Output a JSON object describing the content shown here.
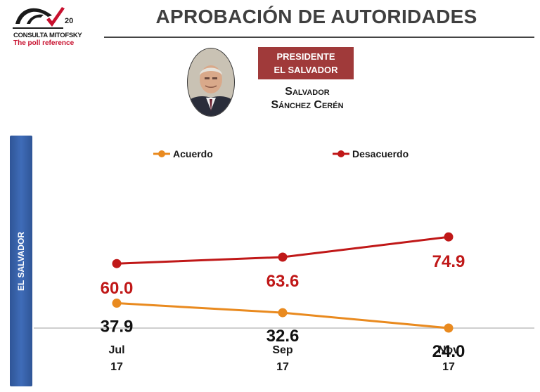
{
  "header": {
    "title": "APROBACIÓN DE AUTORIDADES",
    "logo_brand": "CONSULTA MITOFSKY",
    "logo_tagline": "The poll reference",
    "logo_anniversary": "20"
  },
  "profile": {
    "role_line1": "PRESIDENTE",
    "role_line2": "EL SALVADOR",
    "name_line1": "Salvador",
    "name_line2": "Sánchez Cerén"
  },
  "side_label": "EL SALVADOR",
  "colors": {
    "acuerdo": "#e98a1f",
    "desacuerdo": "#c01818",
    "role_box": "#a03a3a",
    "side_bar": "#2f5597"
  },
  "chart_data": {
    "type": "line",
    "categories": [
      {
        "month": "Jul",
        "year": "17"
      },
      {
        "month": "Sep",
        "year": "17"
      },
      {
        "month": "Nov",
        "year": "17"
      }
    ],
    "series": [
      {
        "name": "Acuerdo",
        "values": [
          37.9,
          32.6,
          24.0
        ],
        "labels": [
          "37.9",
          "32.6",
          "24.0"
        ],
        "color": "#e98a1f"
      },
      {
        "name": "Desacuerdo",
        "values": [
          60.0,
          63.6,
          74.9
        ],
        "labels": [
          "60.0",
          "63.6",
          "74.9"
        ],
        "color": "#c01818"
      }
    ],
    "legend_position": "top",
    "grid": false
  }
}
